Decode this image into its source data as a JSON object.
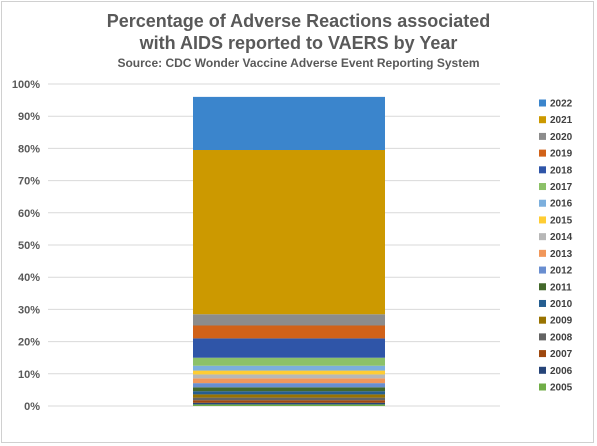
{
  "chart_data": {
    "type": "bar",
    "stacked": true,
    "title_lines": [
      "Percentage of Adverse Reactions associated",
      "with AIDS reported to VAERS by Year"
    ],
    "subtitle": "Source: CDC Wonder Vaccine Adverse Event Reporting System",
    "yticks": [
      "0%",
      "10%",
      "20%",
      "30%",
      "40%",
      "50%",
      "60%",
      "70%",
      "80%",
      "90%",
      "100%"
    ],
    "ylim": [
      0,
      100
    ],
    "grid": true,
    "legend_position": "right",
    "series": [
      {
        "name": "2005",
        "value": 0.5,
        "color": "#70ad47"
      },
      {
        "name": "2006",
        "value": 0.5,
        "color": "#264478"
      },
      {
        "name": "2007",
        "value": 0.8,
        "color": "#9e480e"
      },
      {
        "name": "2008",
        "value": 0.8,
        "color": "#636363"
      },
      {
        "name": "2009",
        "value": 1.0,
        "color": "#997300"
      },
      {
        "name": "2010",
        "value": 1.0,
        "color": "#255e91"
      },
      {
        "name": "2011",
        "value": 1.2,
        "color": "#43682b"
      },
      {
        "name": "2012",
        "value": 1.3,
        "color": "#698ed0"
      },
      {
        "name": "2013",
        "value": 1.5,
        "color": "#f1975a"
      },
      {
        "name": "2014",
        "value": 1.2,
        "color": "#b7b7b7"
      },
      {
        "name": "2015",
        "value": 1.2,
        "color": "#ffcd33"
      },
      {
        "name": "2016",
        "value": 1.5,
        "color": "#7cafdd"
      },
      {
        "name": "2017",
        "value": 2.5,
        "color": "#8cc168"
      },
      {
        "name": "2018",
        "value": 6.0,
        "color": "#2f55a8"
      },
      {
        "name": "2019",
        "value": 4.0,
        "color": "#d16219"
      },
      {
        "name": "2020",
        "value": 3.5,
        "color": "#8c8c8c"
      },
      {
        "name": "2021",
        "value": 51.0,
        "color": "#cc9900"
      },
      {
        "name": "2022",
        "value": 16.5,
        "color": "#3b85cc"
      }
    ]
  }
}
